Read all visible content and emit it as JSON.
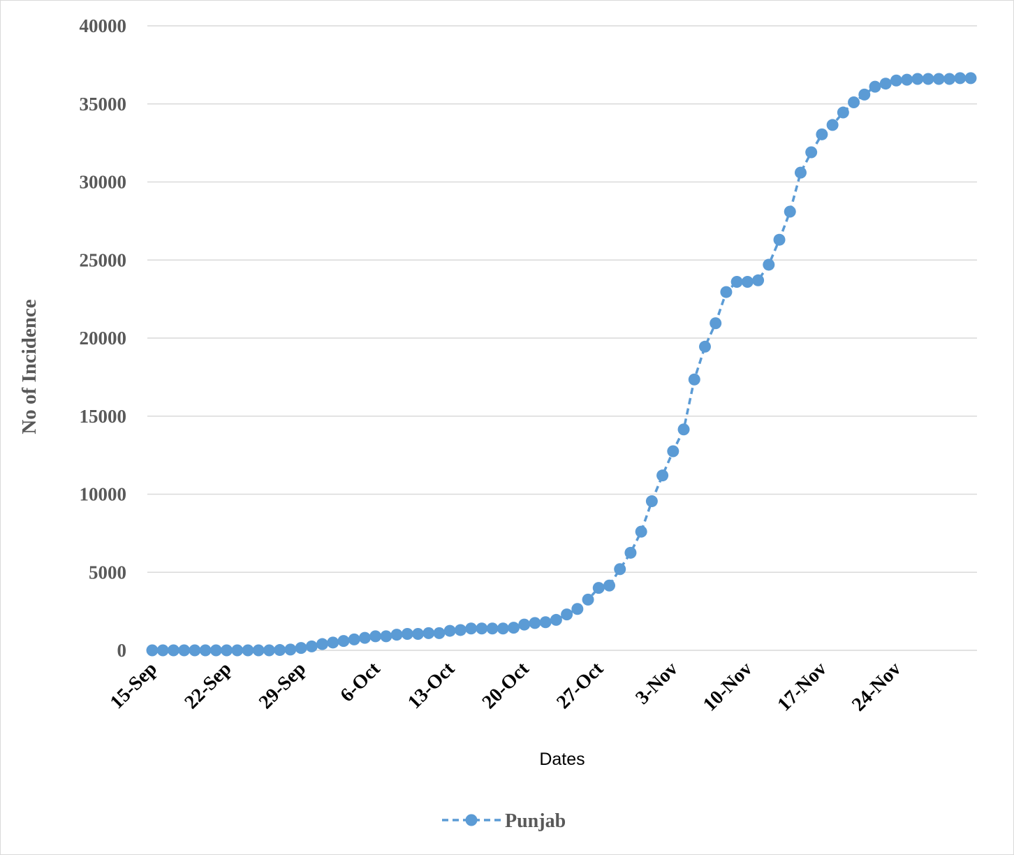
{
  "chart_data": {
    "type": "line",
    "xlabel": "Dates",
    "ylabel": "No of Incidence",
    "ylim": [
      0,
      40000
    ],
    "yticks": [
      "0",
      "5000",
      "10000",
      "15000",
      "20000",
      "25000",
      "30000",
      "35000",
      "40000"
    ],
    "x_tick_labels": [
      "15-Sep",
      "22-Sep",
      "29-Sep",
      "6-Oct",
      "13-Oct",
      "20-Oct",
      "27-Oct",
      "3-Nov",
      "10-Nov",
      "17-Nov",
      "24-Nov"
    ],
    "x_tick_every": 7,
    "grid": true,
    "legend_position": "bottom",
    "series": [
      {
        "name": "Punjab",
        "color": "#5B9BD5",
        "marker": "circle",
        "line_style": "dashed",
        "x": [
          "15-Sep",
          "16-Sep",
          "17-Sep",
          "18-Sep",
          "19-Sep",
          "20-Sep",
          "21-Sep",
          "22-Sep",
          "23-Sep",
          "24-Sep",
          "25-Sep",
          "26-Sep",
          "27-Sep",
          "28-Sep",
          "29-Sep",
          "30-Sep",
          "1-Oct",
          "2-Oct",
          "3-Oct",
          "4-Oct",
          "5-Oct",
          "6-Oct",
          "7-Oct",
          "8-Oct",
          "9-Oct",
          "10-Oct",
          "11-Oct",
          "12-Oct",
          "13-Oct",
          "14-Oct",
          "15-Oct",
          "16-Oct",
          "17-Oct",
          "18-Oct",
          "19-Oct",
          "20-Oct",
          "21-Oct",
          "22-Oct",
          "23-Oct",
          "24-Oct",
          "25-Oct",
          "26-Oct",
          "27-Oct",
          "28-Oct",
          "29-Oct",
          "30-Oct",
          "31-Oct",
          "1-Nov",
          "2-Nov",
          "3-Nov",
          "4-Nov",
          "5-Nov",
          "6-Nov",
          "7-Nov",
          "8-Nov",
          "9-Nov",
          "10-Nov",
          "11-Nov",
          "12-Nov",
          "13-Nov",
          "14-Nov",
          "15-Nov",
          "16-Nov",
          "17-Nov",
          "18-Nov",
          "19-Nov",
          "20-Nov",
          "21-Nov",
          "22-Nov",
          "23-Nov",
          "24-Nov",
          "25-Nov",
          "26-Nov",
          "27-Nov",
          "28-Nov",
          "29-Nov",
          "30-Nov",
          "1-Dec"
        ],
        "values": [
          0,
          0,
          0,
          0,
          0,
          0,
          0,
          0,
          0,
          0,
          0,
          0,
          20,
          50,
          150,
          250,
          400,
          500,
          600,
          700,
          800,
          900,
          900,
          1000,
          1050,
          1050,
          1100,
          1100,
          1250,
          1300,
          1400,
          1400,
          1400,
          1400,
          1450,
          1650,
          1750,
          1800,
          1950,
          2300,
          2650,
          3250,
          4000,
          4150,
          5200,
          6250,
          7600,
          9550,
          11200,
          12750,
          14150,
          17350,
          19450,
          20950,
          22950,
          23600,
          23600,
          23700,
          24700,
          26300,
          28100,
          30600,
          31900,
          33050,
          33650,
          34450,
          35100,
          35600,
          36100,
          36300,
          36500,
          36550,
          36600,
          36600,
          36600,
          36600,
          36650,
          36650
        ]
      }
    ]
  }
}
